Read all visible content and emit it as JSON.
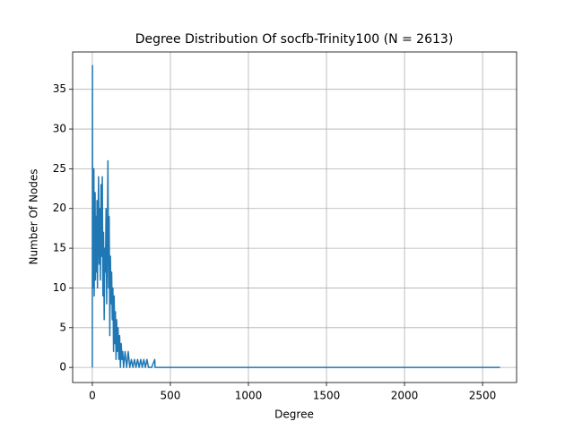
{
  "chart_data": {
    "type": "line",
    "title": "Degree Distribution Of socfb-Trinity100 (N = 2613)",
    "x_label": "Degree",
    "y_label": "Number Of Nodes",
    "color": "#1f77b4",
    "grid": true,
    "x": [
      0,
      1,
      2,
      4,
      6,
      8,
      10,
      12,
      14,
      16,
      18,
      20,
      22,
      25,
      28,
      30,
      33,
      36,
      40,
      44,
      48,
      52,
      56,
      60,
      64,
      68,
      72,
      76,
      80,
      84,
      88,
      92,
      96,
      100,
      104,
      108,
      112,
      116,
      120,
      124,
      128,
      132,
      136,
      140,
      144,
      148,
      152,
      156,
      160,
      165,
      170,
      175,
      180,
      185,
      190,
      195,
      200,
      210,
      220,
      230,
      240,
      250,
      260,
      270,
      280,
      290,
      300,
      310,
      320,
      330,
      340,
      350,
      360,
      380,
      400,
      402,
      420,
      2612
    ],
    "values": [
      0,
      38,
      12,
      24,
      10,
      20,
      25,
      9,
      18,
      14,
      22,
      11,
      16,
      19,
      12,
      21,
      10,
      17,
      24,
      13,
      20,
      11,
      23,
      14,
      24,
      9,
      17,
      6,
      15,
      12,
      20,
      8,
      16,
      26,
      10,
      19,
      4,
      14,
      8,
      12,
      6,
      10,
      2,
      9,
      3,
      7,
      1,
      6,
      2,
      5,
      1,
      4,
      0,
      3,
      1,
      2,
      0,
      2,
      0,
      2,
      0,
      1,
      0,
      1,
      0,
      1,
      0,
      1,
      0,
      1,
      0,
      1,
      0,
      0,
      1,
      0,
      0,
      0
    ],
    "xlim": [
      -126,
      2718
    ],
    "ylim": [
      -1.9,
      39.7
    ],
    "xticks": [
      0,
      500,
      1000,
      1500,
      2000,
      2500
    ],
    "yticks": [
      0,
      5,
      10,
      15,
      20,
      25,
      30,
      35
    ]
  }
}
